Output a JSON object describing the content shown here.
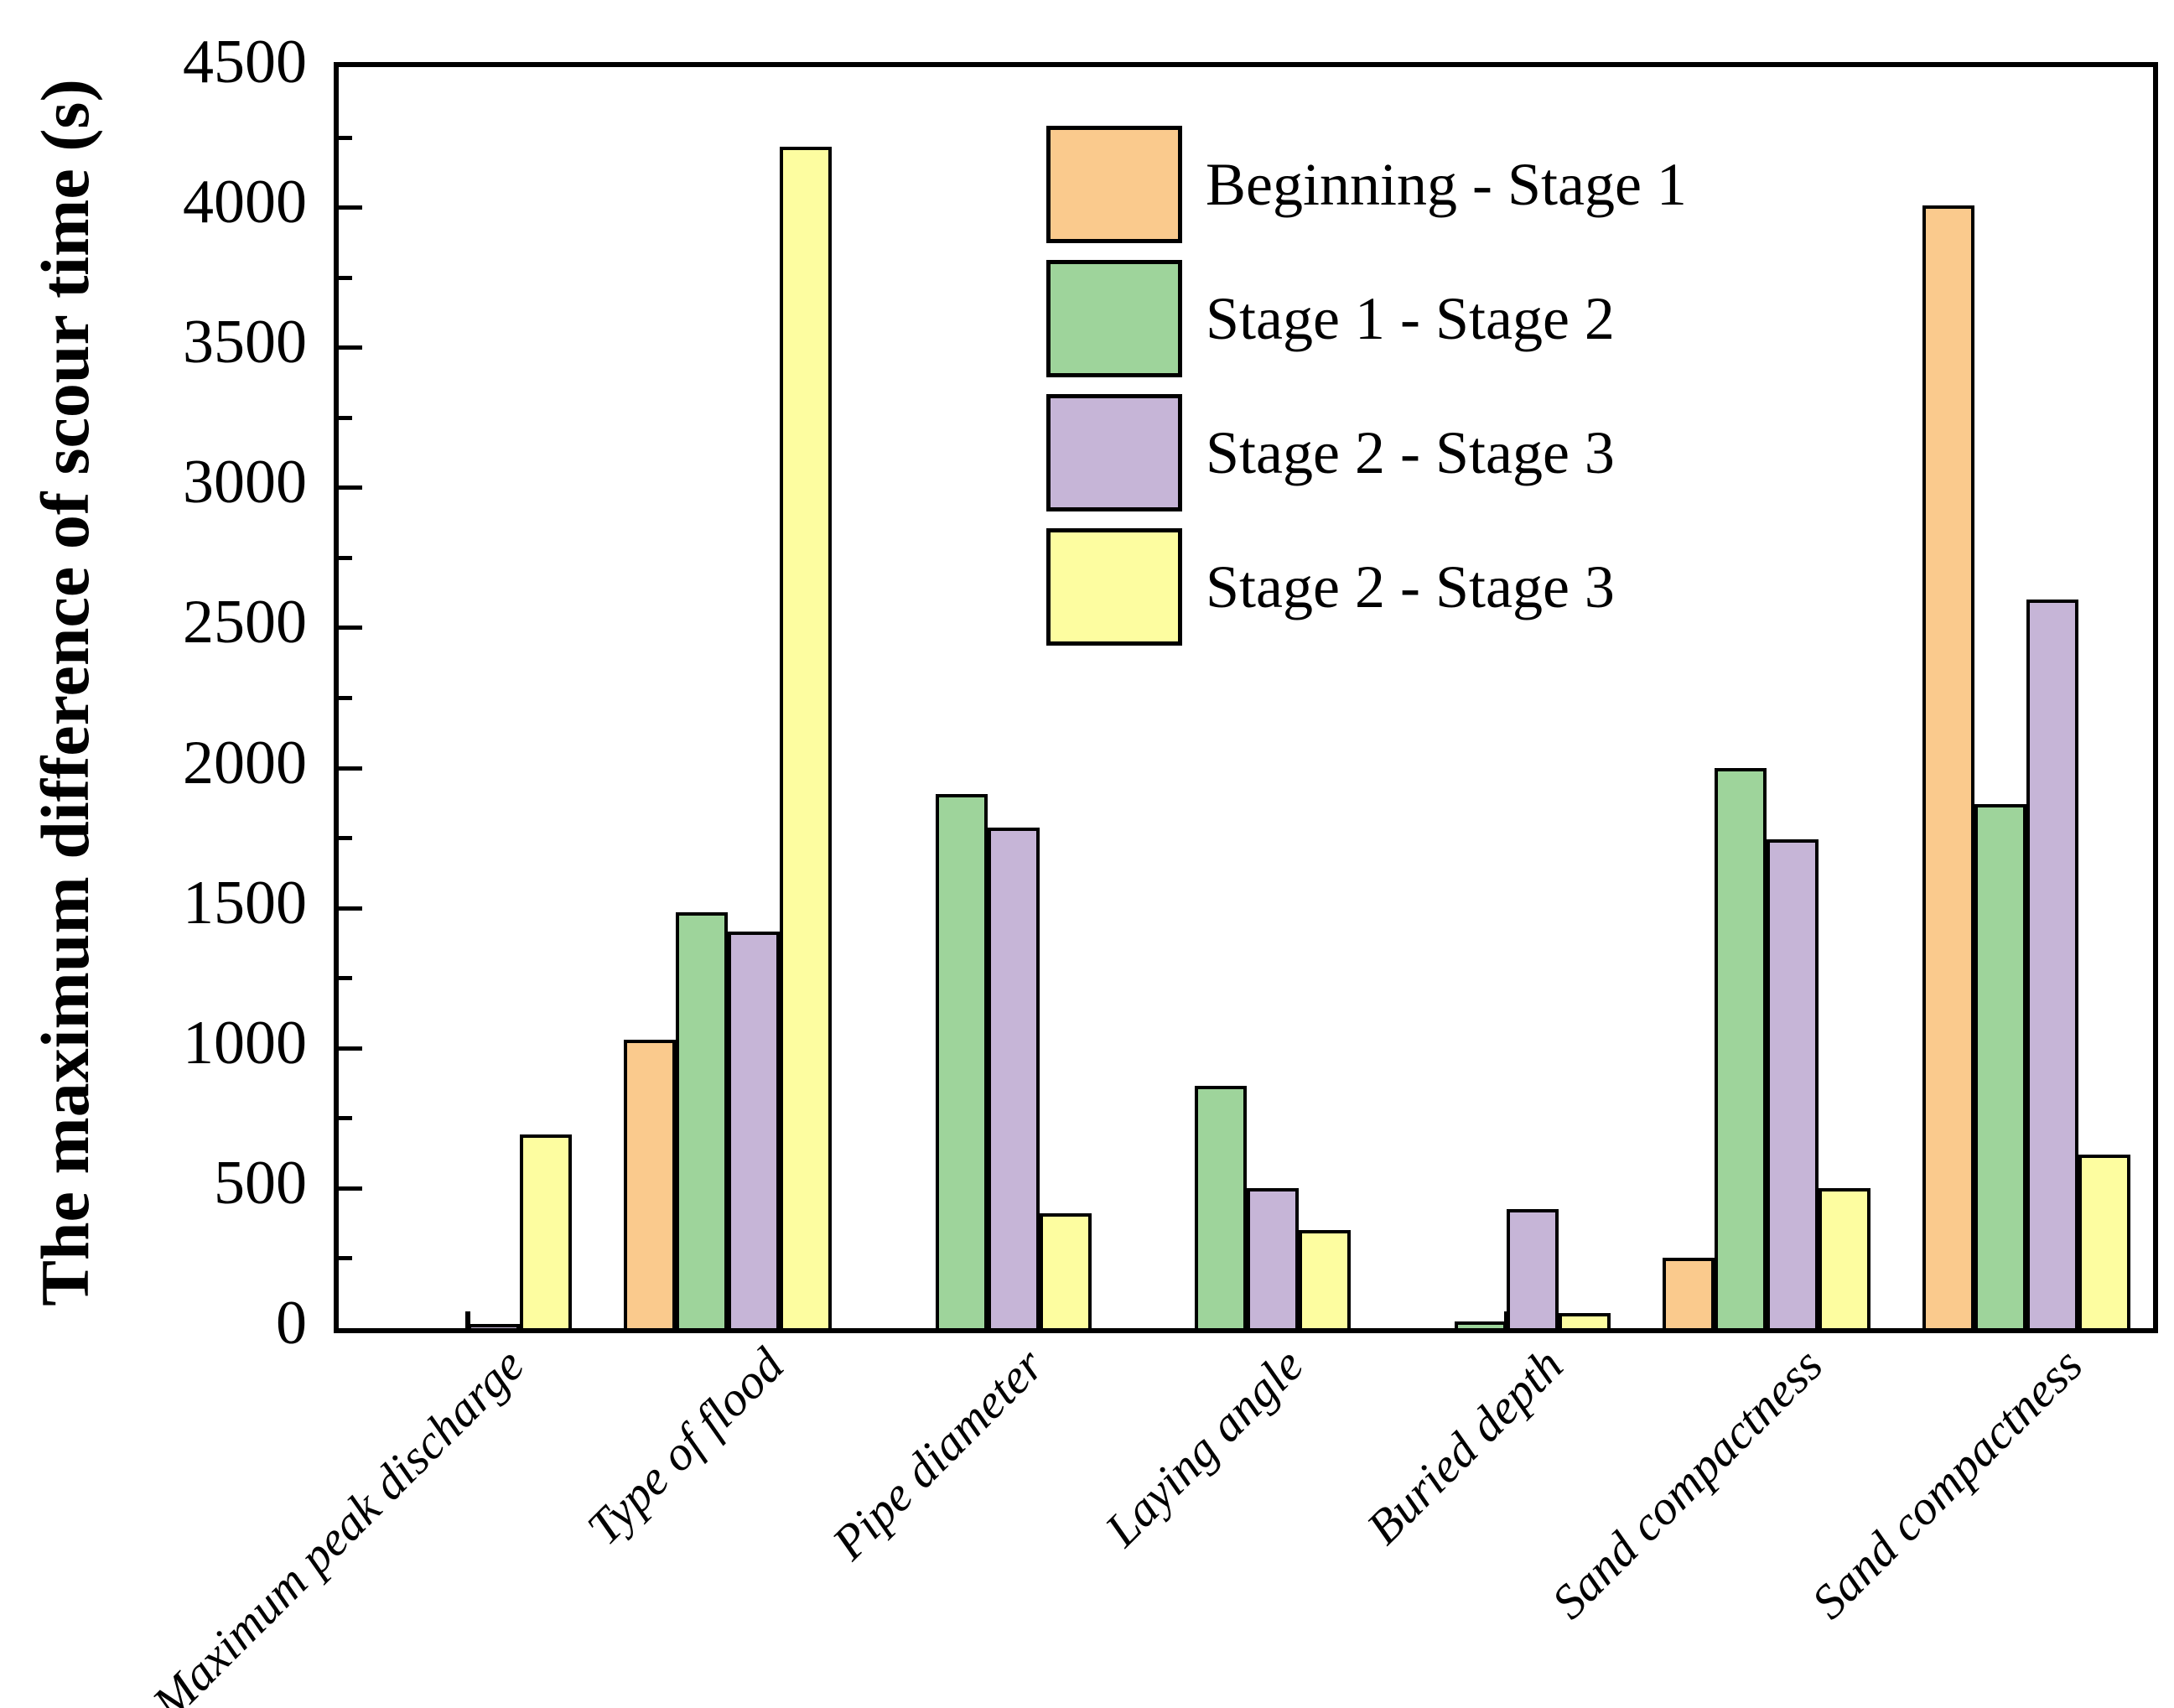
{
  "chart_data": {
    "type": "bar",
    "title": "",
    "xlabel": "",
    "ylabel": "The maximum difference of scour time (s)",
    "ylim": [
      0,
      4500
    ],
    "y_tick_labels": [
      "0",
      "500",
      "1000",
      "1500",
      "2000",
      "2500",
      "3000",
      "3500",
      "4000",
      "4500"
    ],
    "y_major_step": 500,
    "y_minor_step": 250,
    "grid": false,
    "legend_position": "top-center",
    "categories": [
      "Maximum peak discharge",
      "Type of flood",
      "Pipe diameter",
      "Laying angle",
      "Buried depth",
      "Sand compactness",
      "Sand compactness"
    ],
    "series": [
      {
        "name": "Beginning - Stage 1",
        "color": "#FACA8D",
        "values": [
          0,
          1030,
          0,
          0,
          0,
          250,
          4005
        ]
      },
      {
        "name": "Stage 1 - Stage 2",
        "color": "#9ED49B",
        "values": [
          0,
          1485,
          1905,
          865,
          25,
          2000,
          1870
        ]
      },
      {
        "name": "Stage 2 - Stage 3",
        "color": "#C6B5D7",
        "values": [
          15,
          1415,
          1785,
          500,
          425,
          1745,
          2600
        ]
      },
      {
        "name": "Stage 2 - Stage 3",
        "color": "#FDFDA0",
        "values": [
          690,
          4215,
          410,
          350,
          55,
          500,
          620
        ]
      }
    ],
    "bar_outline_color": "#000000"
  }
}
